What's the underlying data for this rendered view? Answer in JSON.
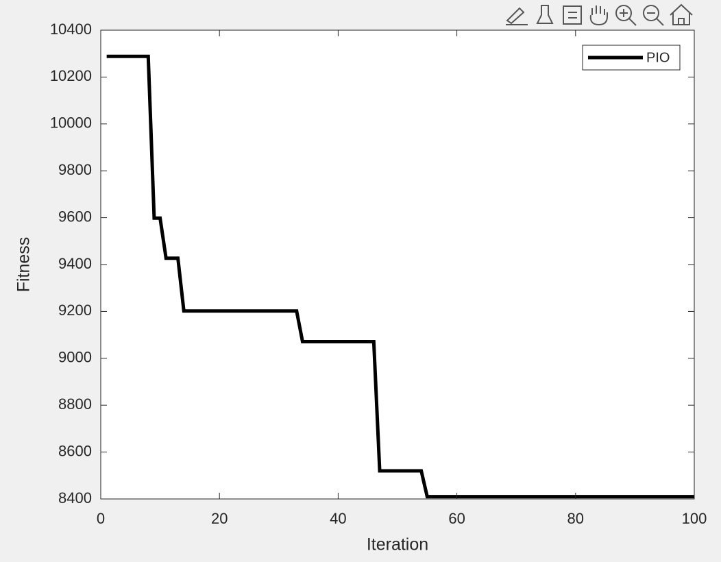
{
  "chart_data": {
    "type": "line",
    "xlabel": "Iteration",
    "ylabel": "Fitness",
    "x": [
      1,
      2,
      3,
      4,
      5,
      6,
      7,
      8,
      9,
      10,
      11,
      12,
      13,
      14,
      15,
      16,
      17,
      18,
      19,
      20,
      21,
      22,
      23,
      24,
      25,
      26,
      27,
      28,
      29,
      30,
      31,
      32,
      33,
      34,
      35,
      36,
      37,
      38,
      39,
      40,
      41,
      42,
      43,
      44,
      45,
      46,
      47,
      48,
      49,
      50,
      51,
      52,
      53,
      54,
      55,
      56,
      57,
      58,
      59,
      60,
      61,
      62,
      63,
      64,
      65,
      66,
      67,
      68,
      69,
      70,
      71,
      72,
      73,
      74,
      75,
      76,
      77,
      78,
      79,
      80,
      81,
      82,
      83,
      84,
      85,
      86,
      87,
      88,
      89,
      90,
      91,
      92,
      93,
      94,
      95,
      96,
      97,
      98,
      99,
      100
    ],
    "series": [
      {
        "name": "PIO",
        "color": "#000000",
        "values": [
          10288,
          10288,
          10288,
          10288,
          10288,
          10288,
          10288,
          10288,
          9598,
          9598,
          9427,
          9427,
          9427,
          9202,
          9202,
          9202,
          9202,
          9202,
          9202,
          9202,
          9202,
          9202,
          9202,
          9202,
          9202,
          9202,
          9202,
          9202,
          9202,
          9202,
          9202,
          9202,
          9202,
          9071,
          9071,
          9071,
          9071,
          9071,
          9071,
          9071,
          9071,
          9071,
          9071,
          9071,
          9071,
          9071,
          8520,
          8520,
          8520,
          8520,
          8520,
          8520,
          8520,
          8520,
          8410,
          8410,
          8410,
          8410,
          8410,
          8410,
          8410,
          8410,
          8410,
          8410,
          8410,
          8410,
          8410,
          8410,
          8410,
          8410,
          8410,
          8410,
          8410,
          8410,
          8410,
          8410,
          8410,
          8410,
          8410,
          8410,
          8410,
          8410,
          8410,
          8410,
          8410,
          8410,
          8410,
          8410,
          8410,
          8410,
          8410,
          8410,
          8410,
          8410,
          8410,
          8410,
          8410,
          8410,
          8410,
          8410
        ]
      }
    ],
    "xlim": [
      0,
      100
    ],
    "xticks": [
      0,
      20,
      40,
      60,
      80,
      100
    ],
    "ylim": [
      8400,
      10400
    ],
    "yticks": [
      8400,
      8600,
      8800,
      9000,
      9200,
      9400,
      9600,
      9800,
      10000,
      10200,
      10400
    ],
    "grid": false,
    "legend_location": "northeast"
  }
}
